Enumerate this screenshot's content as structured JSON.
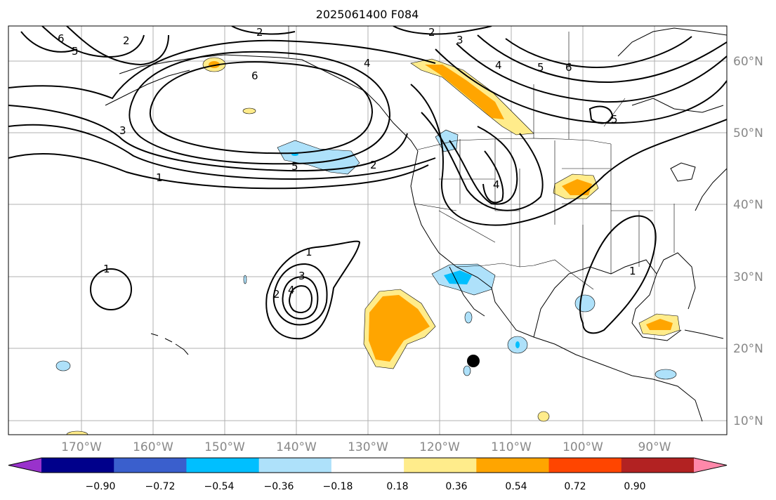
{
  "title": "2025061400 F084",
  "lon_labels": [
    "170°W",
    "160°W",
    "150°W",
    "140°W",
    "130°W",
    "120°W",
    "110°W",
    "100°W",
    "90°W"
  ],
  "lat_labels": [
    "60°N",
    "50°N",
    "40°N",
    "30°N",
    "20°N",
    "10°N"
  ],
  "colorbar": {
    "tick_labels": [
      "−0.90",
      "−0.72",
      "−0.54",
      "−0.36",
      "−0.18",
      "0.18",
      "0.36",
      "0.54",
      "0.72",
      "0.90"
    ],
    "colors": [
      "#9932cc",
      "#00008b",
      "#3a5fcd",
      "#00bfff",
      "#aee1fa",
      "#ffffff",
      "#ffec8b",
      "#ffa500",
      "#ff4500",
      "#b22222",
      "#ff88aa"
    ]
  },
  "contour_labels": [
    "2",
    "6",
    "5",
    "2",
    "3",
    "4",
    "5",
    "6",
    "5",
    "2",
    "6",
    "4",
    "3",
    "1",
    "2",
    "5",
    "4",
    "1",
    "1",
    "3",
    "4",
    "2",
    "1"
  ],
  "marker": "station-dot"
}
